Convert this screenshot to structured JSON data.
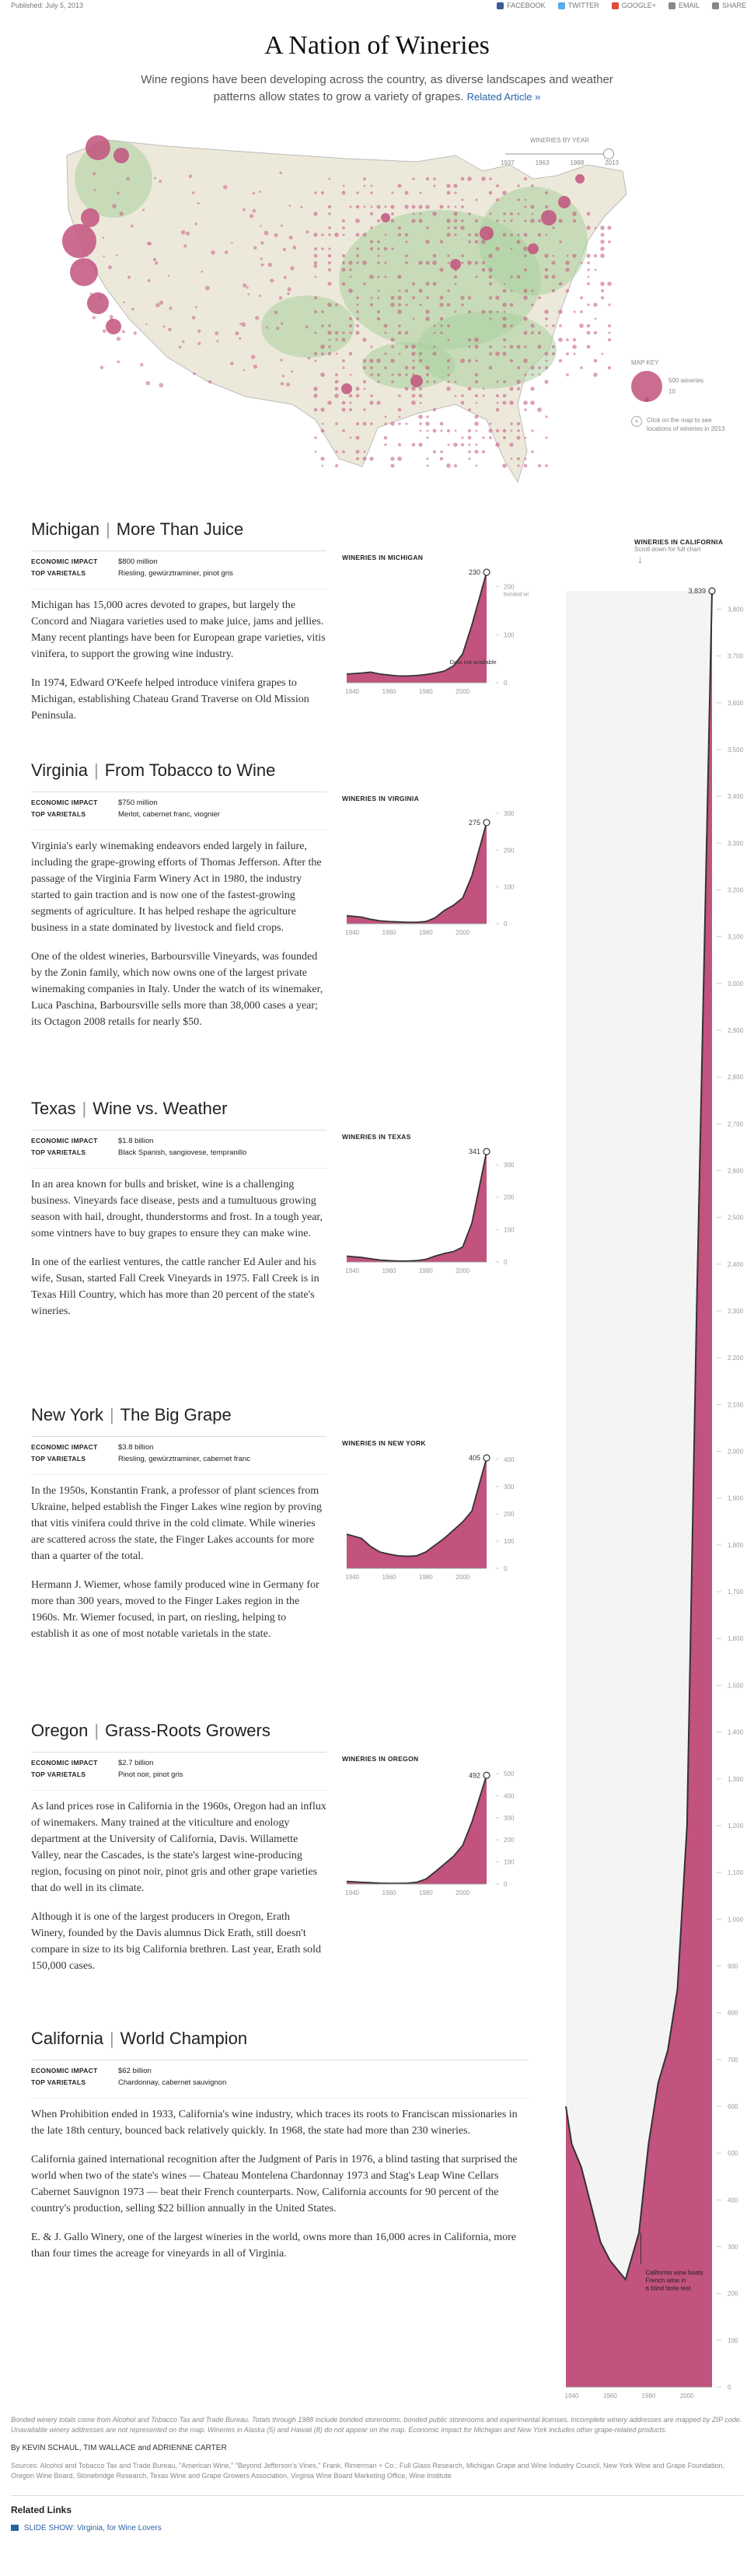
{
  "topbar": {
    "published": "Published: July 5, 2013",
    "share": [
      {
        "label": "FACEBOOK",
        "icon": "facebook-icon",
        "color": "#3b5998"
      },
      {
        "label": "TWITTER",
        "icon": "twitter-icon",
        "color": "#55acee"
      },
      {
        "label": "GOOGLE+",
        "icon": "google-plus-icon",
        "color": "#dd4b39"
      },
      {
        "label": "EMAIL",
        "icon": "email-icon",
        "color": "#888888"
      },
      {
        "label": "SHARE",
        "icon": "share-icon",
        "color": "#888888"
      }
    ]
  },
  "title": "A Nation of Wineries",
  "dek": "Wine regions have been developing across the country, as diverse landscapes and weather patterns allow states to grow a variety of grapes.",
  "related_link": "Related Article »",
  "map": {
    "slider_label": "WINERIES BY YEAR",
    "years": [
      "1937",
      "1963",
      "1988",
      "2013"
    ],
    "key_title": "MAP KEY",
    "key_large": "500 wineries",
    "key_small": "10",
    "click_note": "Click on the map to see locations of wineries in 2013",
    "accent": "#c2527e",
    "land": "#ede9da",
    "green": "#a9cf9f"
  },
  "california_panel": {
    "title": "WINERIES IN CALIFORNIA",
    "sub": "Scroll down for full chart",
    "top_value": "3,839",
    "note": "California wine beats French wine in a blind taste test"
  },
  "sections": [
    {
      "state": "Michigan",
      "headline": "More Than Juice",
      "impact_label": "ECONOMIC IMPACT",
      "impact": "$800 million",
      "varietals_label": "TOP VARIETALS",
      "varietals": "Riesling, gewürztraminer, pinot gris",
      "chart_title": "WINERIES IN MICHIGAN",
      "end_label": "230",
      "unit": "bonded wineries",
      "paras": [
        "Michigan has 15,000 acres devoted to grapes, but largely the Concord and Niagara varieties used to make juice, jams and jellies. Many recent plantings have been for European grape varieties, vitis vinifera, to support the growing wine industry.",
        "In 1974, Edward O'Keefe helped introduce vinifera grapes to Michigan, establishing Chateau Grand Traverse on Old Mission Peninsula."
      ],
      "note": "Data not available"
    },
    {
      "state": "Virginia",
      "headline": "From Tobacco to Wine",
      "impact_label": "ECONOMIC IMPACT",
      "impact": "$750 million",
      "varietals_label": "TOP VARIETALS",
      "varietals": "Merlot, cabernet franc, viognier",
      "chart_title": "WINERIES IN VIRGINIA",
      "end_label": "275",
      "paras": [
        "Virginia's early winemaking endeavors ended largely in failure, including the grape-growing efforts of Thomas Jefferson. After the passage of the Virginia Farm Winery Act in 1980, the industry started to gain traction and is now one of the fastest-growing segments of agriculture. It has helped reshape the agriculture business in a state dominated by livestock and field crops.",
        "One of the oldest wineries, Barboursville Vineyards, was founded by the Zonin family, which now owns one of the largest private winemaking companies in Italy. Under the watch of its winemaker, Luca Paschina, Barboursville sells more than 38,000 cases a year; its Octagon 2008 retails for nearly $50."
      ]
    },
    {
      "state": "Texas",
      "headline": "Wine vs. Weather",
      "impact_label": "ECONOMIC IMPACT",
      "impact": "$1.8 billion",
      "varietals_label": "TOP VARIETALS",
      "varietals": "Black Spanish, sangiovese, tempranillo",
      "chart_title": "WINERIES IN TEXAS",
      "end_label": "341",
      "paras": [
        "In an area known for bulls and brisket, wine is a challenging business. Vineyards face disease, pests and a tumultuous growing season with hail, drought, thunderstorms and frost. In a tough year, some vintners have to buy grapes to ensure they can make wine.",
        "In one of the earliest ventures, the cattle rancher Ed Auler and his wife, Susan, started Fall Creek Vineyards in 1975. Fall Creek is in Texas Hill Country, which has more than 20 percent of the state's wineries."
      ]
    },
    {
      "state": "New York",
      "headline": "The Big Grape",
      "impact_label": "ECONOMIC IMPACT",
      "impact": "$3.8 billion",
      "varietals_label": "TOP VARIETALS",
      "varietals": "Riesling, gewürztraminer, cabernet franc",
      "chart_title": "WINERIES IN NEW YORK",
      "end_label": "405",
      "paras": [
        "In the 1950s, Konstantin Frank, a professor of plant sciences from Ukraine, helped establish the Finger Lakes wine region by proving that vitis vinifera could thrive in the cold climate. While wineries are scattered across the state, the Finger Lakes accounts for more than a quarter of the total.",
        "Hermann J. Wiemer, whose family produced wine in Germany for more than 300 years, moved to the Finger Lakes region in the 1960s. Mr. Wiemer focused, in part, on riesling, helping to establish it as one of most notable varietals in the state."
      ]
    },
    {
      "state": "Oregon",
      "headline": "Grass-Roots Growers",
      "impact_label": "ECONOMIC IMPACT",
      "impact": "$2.7 billion",
      "varietals_label": "TOP VARIETALS",
      "varietals": "Pinot noir, pinot gris",
      "chart_title": "WINERIES IN OREGON",
      "end_label": "492",
      "paras": [
        "As land prices rose in California in the 1960s, Oregon had an influx of winemakers. Many trained at the viticulture and enology department at the University of California, Davis. Willamette Valley, near the Cascades, is the state's largest wine-producing region, focusing on pinot noir, pinot gris and other grape varieties that do well in its climate.",
        "Although it is one of the largest producers in Oregon, Erath Winery, founded by the Davis alumnus Dick Erath, still doesn't compare in size to its big California brethren. Last year, Erath sold 150,000 cases."
      ]
    },
    {
      "state": "California",
      "headline": "World Champion",
      "impact_label": "ECONOMIC IMPACT",
      "impact": "$62 billion",
      "varietals_label": "TOP VARIETALS",
      "varietals": "Chardonnay, cabernet sauvignon",
      "paras": [
        "When Prohibition ended in 1933, California's wine industry, which traces its roots to Franciscan missionaries in the late 18th century, bounced back relatively quickly. In 1968, the state had more than 230 wineries.",
        "California gained international recognition after the Judgment of Paris in 1976, a blind tasting that surprised the world when two of the state's wines — Chateau Montelena Chardonnay 1973 and Stag's Leap Wine Cellars Cabernet Sauvignon 1973 — beat their French counterparts. Now, California accounts for 90 percent of the country's production, selling $22 billion annually in the United States.",
        "E. & J. Gallo Winery, one of the largest wineries in the world, owns more than 16,000 acres in California, more than four times the acreage for vineyards in all of Virginia."
      ]
    }
  ],
  "chart_data": [
    {
      "type": "area",
      "state": "Michigan",
      "x": [
        1937,
        1945,
        1950,
        1955,
        1960,
        1965,
        1970,
        1975,
        1980,
        1985,
        1990,
        1995,
        2000,
        2005,
        2013
      ],
      "y": [
        18,
        20,
        22,
        18,
        16,
        14,
        14,
        15,
        17,
        20,
        24,
        35,
        60,
        120,
        230
      ],
      "ylim": [
        0,
        230
      ],
      "ticks": [
        0,
        100,
        200
      ],
      "xticks": [
        1940,
        1960,
        1980,
        2000
      ]
    },
    {
      "type": "area",
      "state": "Virginia",
      "x": [
        1937,
        1945,
        1950,
        1955,
        1960,
        1965,
        1970,
        1975,
        1980,
        1985,
        1990,
        1995,
        2000,
        2005,
        2013
      ],
      "y": [
        22,
        18,
        12,
        8,
        6,
        5,
        4,
        4,
        6,
        16,
        36,
        50,
        70,
        130,
        275
      ],
      "ylim": [
        0,
        300
      ],
      "ticks": [
        0,
        100,
        200,
        300
      ],
      "xticks": [
        1940,
        1960,
        1980,
        2000
      ]
    },
    {
      "type": "area",
      "state": "Texas",
      "x": [
        1937,
        1945,
        1950,
        1955,
        1960,
        1965,
        1970,
        1975,
        1980,
        1985,
        1990,
        1995,
        2000,
        2005,
        2013
      ],
      "y": [
        18,
        14,
        10,
        6,
        4,
        3,
        3,
        4,
        8,
        18,
        26,
        32,
        46,
        120,
        341
      ],
      "ylim": [
        0,
        341
      ],
      "ticks": [
        0,
        100,
        200,
        300
      ],
      "xticks": [
        1940,
        1960,
        1980,
        2000
      ]
    },
    {
      "type": "area",
      "state": "New York",
      "x": [
        1937,
        1945,
        1950,
        1955,
        1960,
        1965,
        1970,
        1975,
        1980,
        1985,
        1990,
        1995,
        2000,
        2005,
        2013
      ],
      "y": [
        125,
        110,
        80,
        60,
        52,
        46,
        44,
        46,
        60,
        85,
        110,
        140,
        170,
        210,
        405
      ],
      "ylim": [
        0,
        405
      ],
      "ticks": [
        0,
        100,
        200,
        300,
        400
      ],
      "xticks": [
        1940,
        1960,
        1980,
        2000
      ]
    },
    {
      "type": "area",
      "state": "Oregon",
      "x": [
        1937,
        1945,
        1950,
        1955,
        1960,
        1965,
        1970,
        1975,
        1980,
        1985,
        1990,
        1995,
        2000,
        2005,
        2013
      ],
      "y": [
        12,
        8,
        6,
        4,
        3,
        3,
        4,
        8,
        22,
        55,
        90,
        125,
        175,
        280,
        492
      ],
      "ylim": [
        0,
        500
      ],
      "ticks": [
        0,
        100,
        200,
        300,
        400,
        500
      ],
      "xticks": [
        1940,
        1960,
        1980,
        2000
      ]
    },
    {
      "type": "area",
      "state": "California",
      "x": [
        1937,
        1940,
        1945,
        1950,
        1955,
        1960,
        1965,
        1968,
        1975,
        1980,
        1985,
        1990,
        1995,
        2000,
        2005,
        2013
      ],
      "y": [
        600,
        520,
        470,
        390,
        310,
        270,
        245,
        230,
        330,
        520,
        650,
        720,
        850,
        1200,
        2300,
        3839
      ],
      "ylim": [
        0,
        3839
      ],
      "ticks": [
        0,
        100,
        200,
        300,
        400,
        500,
        600,
        700,
        800,
        900,
        1000,
        1100,
        1200,
        1300,
        1400,
        1500,
        1600,
        1700,
        1800,
        1900,
        2000,
        2100,
        2200,
        2300,
        2400,
        2500,
        2600,
        2700,
        2800,
        2900,
        3000,
        3100,
        3200,
        3300,
        3400,
        3500,
        3600,
        3700,
        3800
      ],
      "xticks": [
        1940,
        1960,
        1980,
        2000
      ]
    }
  ],
  "footer": {
    "note": "Bonded winery totals come from Alcohol and Tobacco Tax and Trade Bureau. Totals through 1988 include bonded storerooms, bonded public storerooms and experimental licenses. Incomplete winery addresses are mapped by ZIP code. Unavailable winery addresses are not represented on the map. Wineries in Alaska (5) and Hawaii (8) do not appear on the map. Economic impact for Michigan and New York includes other grape-related products.",
    "byline": "By KEVIN SCHAUL, TIM WALLACE and ADRIENNE CARTER",
    "sources": "Sources: Alcohol and Tobacco Tax and Trade Bureau, \"American Wine,\" \"Beyond Jefferson's Vines,\" Frank, Rimerman + Co.; Full Glass Research, Michigan Grape and Wine Industry Council, New York Wine and Grape Foundation, Oregon Wine Board, Stonebridge Research, Texas Wine and Grape Growers Association, Virginia Wine Board Marketing Office, Wine Institute",
    "related_title": "Related Links",
    "related_item": "SLIDE SHOW: Virginia, for Wine Lovers"
  }
}
